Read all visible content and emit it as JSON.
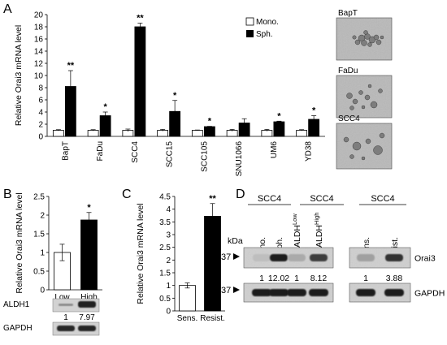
{
  "panels": {
    "A": "A",
    "B": "B",
    "C": "C",
    "D": "D"
  },
  "chart_data": [
    {
      "type": "bar",
      "panel": "A",
      "ylabel": "Relative Orai3 mRNA level",
      "ylim": [
        0,
        20
      ],
      "yticks": [
        0,
        2,
        4,
        6,
        8,
        10,
        12,
        14,
        16,
        18,
        20
      ],
      "categories": [
        "BapT",
        "FaDu",
        "SCC4",
        "SCC15",
        "SCC105",
        "SNU1066",
        "UM6",
        "YD38"
      ],
      "series": [
        {
          "name": "Mono.",
          "color": "#ffffff",
          "values": [
            1,
            1,
            1,
            1,
            1,
            1,
            1,
            1
          ],
          "errors": [
            0.1,
            0.1,
            0.2,
            0.15,
            0.05,
            0.15,
            0.15,
            0.1
          ]
        },
        {
          "name": "Sph.",
          "color": "#000000",
          "values": [
            8.2,
            3.4,
            18.0,
            4.1,
            1.6,
            2.2,
            2.4,
            2.8
          ],
          "errors": [
            2.6,
            0.6,
            0.6,
            1.8,
            0.05,
            0.7,
            0.1,
            0.6
          ]
        }
      ],
      "significance": [
        "**",
        "*",
        "**",
        "*",
        "*",
        "",
        "*",
        "*"
      ],
      "grid": false,
      "legend": "top-right"
    },
    {
      "type": "bar",
      "panel": "B",
      "ylabel": "Relative Orai3 mRNA level",
      "ylim": [
        0,
        2.5
      ],
      "yticks": [
        "0",
        "0.5",
        "1",
        "1.5",
        "2",
        "2.5"
      ],
      "categories": [
        "Low",
        "High"
      ],
      "values": [
        1.0,
        1.87
      ],
      "errors": [
        0.22,
        0.2
      ],
      "colors": [
        "#ffffff",
        "#000000"
      ],
      "significance": [
        "",
        "*"
      ],
      "blot": {
        "rows": [
          "ALDH1",
          "GAPDH"
        ],
        "quant": [
          "1",
          "7.97"
        ]
      }
    },
    {
      "type": "bar",
      "panel": "C",
      "ylabel": "Relative Orai3 mRNA level",
      "ylim": [
        0,
        4.5
      ],
      "yticks": [
        "0",
        "0.5",
        "1",
        "1.5",
        "2",
        "2.5",
        "3",
        "3.5",
        "4",
        "4.5"
      ],
      "categories": [
        "Sens.",
        "Resist."
      ],
      "values": [
        1.0,
        3.72
      ],
      "errors": [
        0.1,
        0.5
      ],
      "colors": [
        "#ffffff",
        "#000000"
      ],
      "significance": [
        "",
        "**"
      ]
    }
  ],
  "micrographs": [
    {
      "label": "BapT"
    },
    {
      "label": "FaDu"
    },
    {
      "label": "SCC4"
    }
  ],
  "panel_d": {
    "kda": "kDa",
    "marker": "37",
    "groups": [
      {
        "header": "SCC4",
        "lanes": [
          "Mono.",
          "Sph."
        ]
      },
      {
        "header": "SCC4",
        "lanes_base": [
          "ALDH",
          "ALDH"
        ],
        "lanes_sup": [
          "Low",
          "High"
        ]
      },
      {
        "header": "SCC4",
        "lanes": [
          "Sens.",
          "Resist."
        ]
      }
    ],
    "quant": [
      "1",
      "12.02",
      "1",
      "8.12",
      "1",
      "3.88"
    ],
    "bands": [
      "Orai3",
      "GAPDH"
    ],
    "band_intensity": [
      0.15,
      0.95,
      0.25,
      0.8,
      0.3,
      0.85
    ]
  }
}
